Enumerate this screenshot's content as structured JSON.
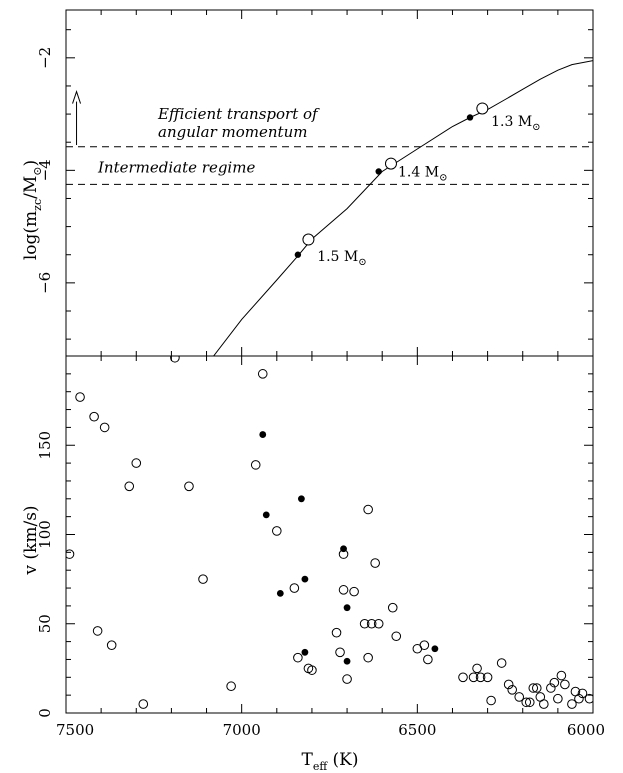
{
  "chart_data": [
    {
      "panel": "top",
      "type": "line",
      "ylabel": "log(m_zc/M_sun)",
      "ylabel_parts": {
        "main": "log(m",
        "sub": "zc",
        "tail": "/M",
        "sun": "⊙",
        "close": ")"
      },
      "xlim": [
        7500,
        6000
      ],
      "ylim": [
        -7.3,
        -1.15
      ],
      "y_ticks": [
        -2,
        -4,
        -6
      ],
      "y_ticklabels": [
        "−2",
        "−4",
        "−6"
      ],
      "series": [
        {
          "x": [
            7080,
            7000,
            6900,
            6840,
            6800,
            6700,
            6600,
            6500,
            6400,
            6350,
            6300,
            6250,
            6200,
            6150,
            6100,
            6060,
            6000
          ],
          "y": [
            -7.3,
            -6.65,
            -5.95,
            -5.52,
            -5.22,
            -4.68,
            -4.02,
            -3.62,
            -3.22,
            -3.06,
            -2.92,
            -2.74,
            -2.56,
            -2.38,
            -2.22,
            -2.12,
            -2.05
          ]
        }
      ],
      "filled_points": [
        {
          "x": 6840,
          "y": -5.5
        },
        {
          "x": 6610,
          "y": -4.02
        },
        {
          "x": 6350,
          "y": -3.06
        }
      ],
      "open_points": [
        {
          "x": 6810,
          "y": -5.23
        },
        {
          "x": 6575,
          "y": -3.88
        },
        {
          "x": 6315,
          "y": -2.9
        }
      ],
      "hlines": [
        -3.58,
        -4.25
      ],
      "arrow": {
        "x": 7470,
        "y_from": -3.55,
        "y_to": -2.6
      },
      "annotations": {
        "transport_line1": "Efficient transport of",
        "transport_line2": "angular momentum",
        "intermediate": "Intermediate regime"
      },
      "mass_labels": [
        {
          "num": "1.5",
          "unit": "M",
          "sun": "⊙",
          "x": 6785,
          "y": -5.52
        },
        {
          "num": "1.4",
          "unit": "M",
          "sun": "⊙",
          "x": 6555,
          "y": -4.02
        },
        {
          "num": "1.3",
          "unit": "M",
          "sun": "⊙",
          "x": 6290,
          "y": -3.12
        }
      ]
    },
    {
      "panel": "bottom",
      "type": "scatter",
      "xlabel": "T_eff (K)",
      "xlabel_parts": {
        "main": "T",
        "sub": "eff",
        "tail": " (K)"
      },
      "ylabel": "v (km/s)",
      "xlim": [
        7500,
        6000
      ],
      "ylim": [
        0,
        200
      ],
      "x_ticks": [
        7500,
        7000,
        6500,
        6000
      ],
      "x_ticklabels": [
        "7500",
        "7000",
        "6500",
        "6000"
      ],
      "y_ticks": [
        0,
        50,
        100,
        150
      ],
      "y_ticklabels": [
        "0",
        "50",
        "100",
        "150"
      ],
      "open_points": [
        [
          7460,
          177
        ],
        [
          7420,
          166
        ],
        [
          7390,
          160
        ],
        [
          7490,
          89
        ],
        [
          7410,
          46
        ],
        [
          7370,
          38
        ],
        [
          7280,
          5
        ],
        [
          7300,
          140
        ],
        [
          7320,
          127
        ],
        [
          7190,
          199
        ],
        [
          7150,
          127
        ],
        [
          7110,
          75
        ],
        [
          7030,
          15
        ],
        [
          6940,
          190
        ],
        [
          6960,
          139
        ],
        [
          6900,
          102
        ],
        [
          6850,
          70
        ],
        [
          6840,
          31
        ],
        [
          6810,
          25
        ],
        [
          6800,
          24
        ],
        [
          6730,
          45
        ],
        [
          6720,
          34
        ],
        [
          6710,
          89
        ],
        [
          6710,
          69
        ],
        [
          6700,
          19
        ],
        [
          6680,
          68
        ],
        [
          6650,
          50
        ],
        [
          6640,
          114
        ],
        [
          6630,
          50
        ],
        [
          6640,
          31
        ],
        [
          6620,
          84
        ],
        [
          6610,
          50
        ],
        [
          6570,
          59
        ],
        [
          6560,
          43
        ],
        [
          6500,
          36
        ],
        [
          6480,
          38
        ],
        [
          6470,
          30
        ],
        [
          6370,
          20
        ],
        [
          6340,
          20
        ],
        [
          6330,
          25
        ],
        [
          6320,
          20
        ],
        [
          6300,
          20
        ],
        [
          6290,
          7
        ],
        [
          6260,
          28
        ],
        [
          6240,
          16
        ],
        [
          6230,
          13
        ],
        [
          6210,
          9
        ],
        [
          6190,
          6
        ],
        [
          6180,
          6
        ],
        [
          6170,
          14
        ],
        [
          6160,
          14
        ],
        [
          6150,
          9
        ],
        [
          6140,
          5
        ],
        [
          6120,
          14
        ],
        [
          6110,
          17
        ],
        [
          6100,
          8
        ],
        [
          6090,
          21
        ],
        [
          6080,
          16
        ],
        [
          6060,
          5
        ],
        [
          6050,
          12
        ],
        [
          6040,
          8
        ],
        [
          6030,
          11
        ],
        [
          6010,
          8
        ]
      ],
      "filled_points": [
        [
          6940,
          156
        ],
        [
          6930,
          111
        ],
        [
          6830,
          120
        ],
        [
          6820,
          75
        ],
        [
          6890,
          67
        ],
        [
          6820,
          34
        ],
        [
          6710,
          92
        ],
        [
          6700,
          59
        ],
        [
          6700,
          29
        ],
        [
          6450,
          36
        ]
      ]
    }
  ]
}
